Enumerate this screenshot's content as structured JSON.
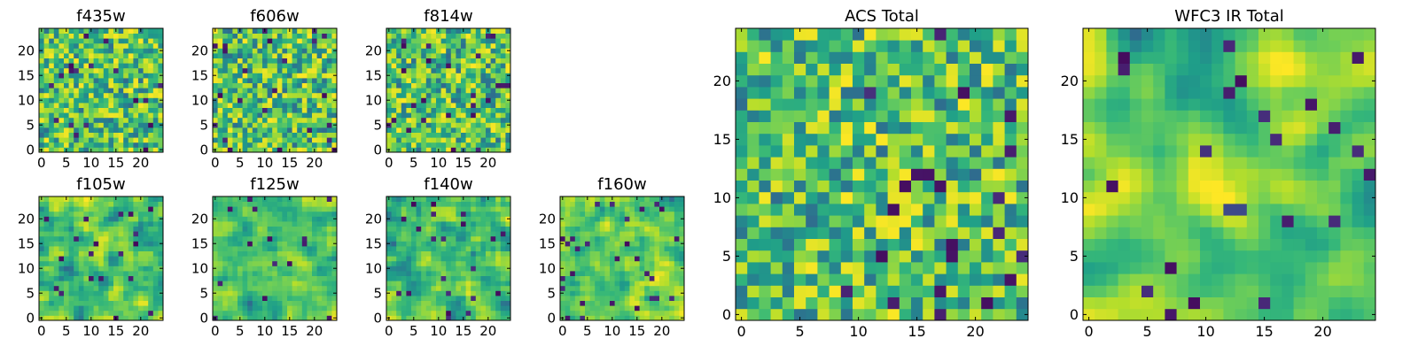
{
  "chart_data": [
    {
      "type": "heatmap",
      "title": "f435w",
      "xticks": [
        "0",
        "5",
        "10",
        "15",
        "20"
      ],
      "yticks": [
        "0",
        "5",
        "10",
        "15",
        "20"
      ],
      "xlim": [
        -0.5,
        24.5
      ],
      "ylim": [
        -0.5,
        24.5
      ],
      "grid": false,
      "colormap": "viridis",
      "texture": "noise"
    },
    {
      "type": "heatmap",
      "title": "f606w",
      "xticks": [
        "0",
        "5",
        "10",
        "15",
        "20"
      ],
      "yticks": [
        "0",
        "5",
        "10",
        "15",
        "20"
      ],
      "xlim": [
        -0.5,
        24.5
      ],
      "ylim": [
        -0.5,
        24.5
      ],
      "grid": false,
      "colormap": "viridis",
      "texture": "noise"
    },
    {
      "type": "heatmap",
      "title": "f814w",
      "xticks": [
        "0",
        "5",
        "10",
        "15",
        "20"
      ],
      "yticks": [
        "0",
        "5",
        "10",
        "15",
        "20"
      ],
      "xlim": [
        -0.5,
        24.5
      ],
      "ylim": [
        -0.5,
        24.5
      ],
      "grid": false,
      "colormap": "viridis",
      "texture": "noise"
    },
    {
      "type": "heatmap",
      "title": "f105w",
      "xticks": [
        "0",
        "5",
        "10",
        "15",
        "20"
      ],
      "yticks": [
        "0",
        "5",
        "10",
        "15",
        "20"
      ],
      "xlim": [
        -0.5,
        24.5
      ],
      "ylim": [
        -0.5,
        24.5
      ],
      "grid": false,
      "colormap": "viridis",
      "texture": "smooth"
    },
    {
      "type": "heatmap",
      "title": "f125w",
      "xticks": [
        "0",
        "5",
        "10",
        "15",
        "20"
      ],
      "yticks": [
        "0",
        "5",
        "10",
        "15",
        "20"
      ],
      "xlim": [
        -0.5,
        24.5
      ],
      "ylim": [
        -0.5,
        24.5
      ],
      "grid": false,
      "colormap": "viridis",
      "texture": "smooth"
    },
    {
      "type": "heatmap",
      "title": "f140w",
      "xticks": [
        "0",
        "5",
        "10",
        "15",
        "20"
      ],
      "yticks": [
        "0",
        "5",
        "10",
        "15",
        "20"
      ],
      "xlim": [
        -0.5,
        24.5
      ],
      "ylim": [
        -0.5,
        24.5
      ],
      "grid": false,
      "colormap": "viridis",
      "texture": "smooth"
    },
    {
      "type": "heatmap",
      "title": "f160w",
      "xticks": [
        "0",
        "5",
        "10",
        "15",
        "20"
      ],
      "yticks": [
        "0",
        "5",
        "10",
        "15",
        "20"
      ],
      "xlim": [
        -0.5,
        24.5
      ],
      "ylim": [
        -0.5,
        24.5
      ],
      "grid": false,
      "colormap": "viridis",
      "texture": "smooth"
    },
    {
      "type": "heatmap",
      "title": "ACS Total",
      "xticks": [
        "0",
        "5",
        "10",
        "15",
        "20"
      ],
      "yticks": [
        "0",
        "5",
        "10",
        "15",
        "20"
      ],
      "xlim": [
        -0.5,
        24.5
      ],
      "ylim": [
        -0.5,
        24.5
      ],
      "grid": false,
      "colormap": "viridis",
      "texture": "noise"
    },
    {
      "type": "heatmap",
      "title": "WFC3 IR Total",
      "xticks": [
        "0",
        "5",
        "10",
        "15",
        "20"
      ],
      "yticks": [
        "0",
        "5",
        "10",
        "15",
        "20"
      ],
      "xlim": [
        -0.5,
        24.5
      ],
      "ylim": [
        -0.5,
        24.5
      ],
      "grid": false,
      "colormap": "viridis",
      "texture": "smooth_center"
    }
  ]
}
